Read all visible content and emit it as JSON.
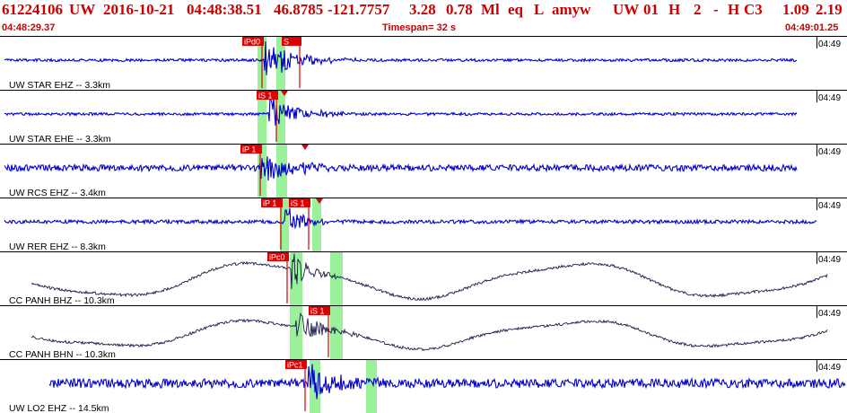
{
  "header": {
    "title_parts": [
      "61224106",
      "UW",
      "2016-10-21",
      "04:48:38.51",
      "46.8785",
      "-121.7757",
      "3.28",
      "0.78",
      "Ml",
      "eq",
      "L",
      "amyw",
      "UW",
      "01",
      "H",
      "2",
      "-",
      "H",
      "C3",
      "1.09",
      "2.19"
    ],
    "start_time": "04:48:29.37",
    "timespan": "Timespan=  32 s",
    "end_time": "04:49:01.25"
  },
  "colors": {
    "header_red": "#cc0000",
    "trace_blue": "#0000cc",
    "trace_dark": "#1a1a4a",
    "pick_red": "#dd0000",
    "pick_highlight": "#88ee88",
    "separator": "#000000"
  },
  "traces": [
    {
      "label": "UW STAR EHZ -- 3.3km",
      "time_mark": "04:49",
      "color": "blue",
      "style": "noise",
      "picks": [
        {
          "label": "iPd0"
        },
        {
          "label": "S"
        }
      ],
      "markers": []
    },
    {
      "label": "UW STAR EHE -- 3.3km",
      "time_mark": "04:49",
      "color": "blue",
      "style": "noise",
      "picks": [
        {
          "label": "iS 1"
        }
      ],
      "markers": []
    },
    {
      "label": "UW RCS EHZ -- 3.4km",
      "time_mark": "04:49",
      "color": "blue",
      "style": "noise",
      "picks": [
        {
          "label": "iP 1"
        }
      ],
      "markers": []
    },
    {
      "label": "UW RER EHZ -- 8.3km",
      "time_mark": "04:49",
      "color": "blue",
      "style": "noise",
      "picks": [
        {
          "label": "iP 1"
        },
        {
          "label": "iS 1"
        }
      ],
      "markers": []
    },
    {
      "label": "CC PANH BHZ -- 10.3km",
      "time_mark": "04:49",
      "color": "dark",
      "style": "wave",
      "picks": [
        {
          "label": "iPc0"
        }
      ],
      "markers": []
    },
    {
      "label": "CC PANH BHN -- 10.3km",
      "time_mark": "04:49",
      "color": "dark",
      "style": "wave",
      "picks": [
        {
          "label": "iS 1"
        }
      ],
      "markers": []
    },
    {
      "label": "UW LO2 EHZ -- 14.5km",
      "time_mark": "04:49",
      "color": "blue",
      "style": "noise",
      "picks": [
        {
          "label": "iPc1"
        }
      ],
      "markers": []
    }
  ]
}
